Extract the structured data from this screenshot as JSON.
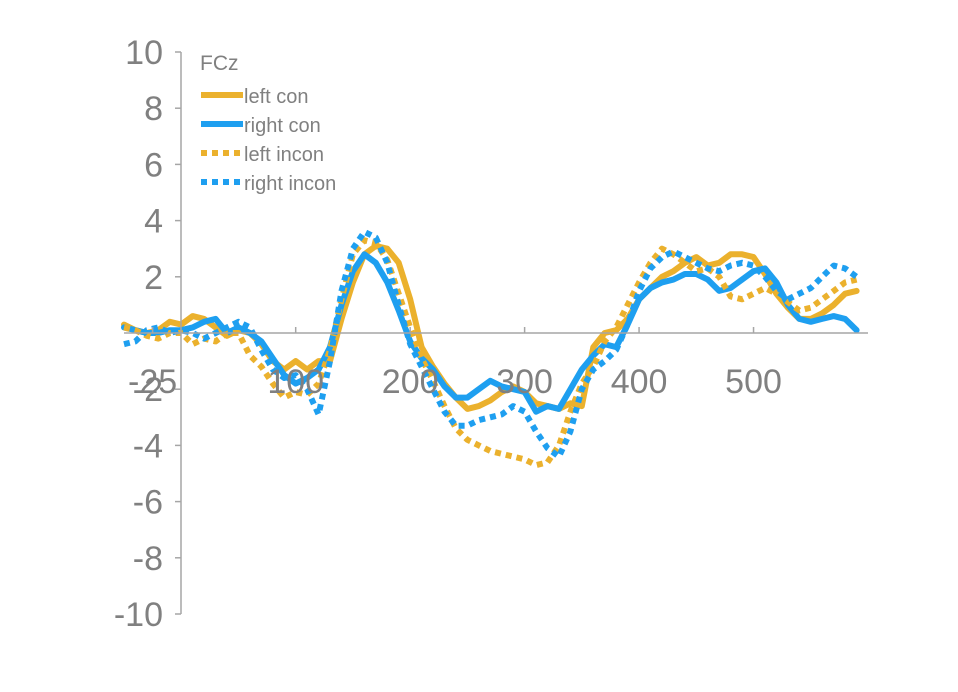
{
  "chart_data": {
    "type": "line",
    "title": "FCz",
    "xlabel": "",
    "ylabel": "",
    "xlim": [
      -50,
      600
    ],
    "ylim": [
      -10,
      10
    ],
    "x_ticks": [
      -25,
      100,
      200,
      300,
      400,
      500
    ],
    "y_ticks": [
      10,
      8,
      6,
      4,
      2,
      0,
      -2,
      -4,
      -6,
      -8,
      -10
    ],
    "y_tick_labels": [
      "10",
      "8",
      "6",
      "4",
      "2",
      "",
      "-2",
      "-4",
      "-6",
      "-8",
      "-10"
    ],
    "grid": false,
    "legend": "top-left",
    "series": [
      {
        "name": "left con",
        "color": "#ebb12d",
        "dash": "solid",
        "points": [
          [
            -50,
            0.3
          ],
          [
            -40,
            0.1
          ],
          [
            -30,
            0.0
          ],
          [
            -20,
            0.1
          ],
          [
            -10,
            0.4
          ],
          [
            0,
            0.3
          ],
          [
            10,
            0.6
          ],
          [
            20,
            0.5
          ],
          [
            30,
            0.2
          ],
          [
            40,
            -0.1
          ],
          [
            50,
            0.1
          ],
          [
            60,
            0.0
          ],
          [
            70,
            -0.4
          ],
          [
            80,
            -1.0
          ],
          [
            90,
            -1.3
          ],
          [
            100,
            -1.0
          ],
          [
            110,
            -1.3
          ],
          [
            120,
            -1.0
          ],
          [
            130,
            -1.0
          ],
          [
            140,
            0.5
          ],
          [
            150,
            1.8
          ],
          [
            160,
            2.8
          ],
          [
            170,
            3.1
          ],
          [
            180,
            3.0
          ],
          [
            190,
            2.5
          ],
          [
            200,
            1.2
          ],
          [
            210,
            -0.5
          ],
          [
            220,
            -1.2
          ],
          [
            230,
            -1.8
          ],
          [
            240,
            -2.3
          ],
          [
            250,
            -2.7
          ],
          [
            260,
            -2.6
          ],
          [
            270,
            -2.4
          ],
          [
            280,
            -2.1
          ],
          [
            290,
            -1.9
          ],
          [
            300,
            -2.1
          ],
          [
            310,
            -2.5
          ],
          [
            320,
            -2.6
          ],
          [
            330,
            -2.7
          ],
          [
            340,
            -2.5
          ],
          [
            350,
            -2.6
          ],
          [
            360,
            -0.5
          ],
          [
            370,
            0.0
          ],
          [
            380,
            0.1
          ],
          [
            390,
            0.5
          ],
          [
            400,
            1.2
          ],
          [
            410,
            1.6
          ],
          [
            420,
            2.0
          ],
          [
            430,
            2.2
          ],
          [
            440,
            2.5
          ],
          [
            450,
            2.7
          ],
          [
            460,
            2.4
          ],
          [
            470,
            2.5
          ],
          [
            480,
            2.8
          ],
          [
            490,
            2.8
          ],
          [
            500,
            2.7
          ],
          [
            510,
            2.1
          ],
          [
            520,
            1.4
          ],
          [
            530,
            0.9
          ],
          [
            540,
            0.5
          ],
          [
            550,
            0.5
          ],
          [
            560,
            0.7
          ],
          [
            570,
            1.0
          ],
          [
            580,
            1.4
          ],
          [
            590,
            1.5
          ]
        ]
      },
      {
        "name": "right con",
        "color": "#1e9ff0",
        "dash": "solid",
        "points": [
          [
            -50,
            0.2
          ],
          [
            -40,
            0.1
          ],
          [
            -30,
            0.0
          ],
          [
            -20,
            0.0
          ],
          [
            -10,
            0.1
          ],
          [
            0,
            0.1
          ],
          [
            10,
            0.2
          ],
          [
            20,
            0.4
          ],
          [
            30,
            0.5
          ],
          [
            40,
            0.0
          ],
          [
            50,
            0.2
          ],
          [
            60,
            0.0
          ],
          [
            70,
            -0.3
          ],
          [
            80,
            -0.9
          ],
          [
            90,
            -1.5
          ],
          [
            100,
            -1.8
          ],
          [
            110,
            -1.6
          ],
          [
            120,
            -1.3
          ],
          [
            130,
            -0.5
          ],
          [
            140,
            1.0
          ],
          [
            150,
            2.2
          ],
          [
            160,
            2.8
          ],
          [
            170,
            2.5
          ],
          [
            180,
            1.8
          ],
          [
            190,
            0.8
          ],
          [
            200,
            -0.3
          ],
          [
            210,
            -0.9
          ],
          [
            220,
            -1.3
          ],
          [
            230,
            -1.9
          ],
          [
            240,
            -2.3
          ],
          [
            250,
            -2.3
          ],
          [
            260,
            -2.0
          ],
          [
            270,
            -1.7
          ],
          [
            280,
            -1.9
          ],
          [
            290,
            -2.0
          ],
          [
            300,
            -2.1
          ],
          [
            310,
            -2.8
          ],
          [
            320,
            -2.6
          ],
          [
            330,
            -2.7
          ],
          [
            340,
            -2.0
          ],
          [
            350,
            -1.3
          ],
          [
            360,
            -0.8
          ],
          [
            370,
            -0.4
          ],
          [
            380,
            -0.5
          ],
          [
            390,
            0.3
          ],
          [
            400,
            1.2
          ],
          [
            410,
            1.6
          ],
          [
            420,
            1.8
          ],
          [
            430,
            1.9
          ],
          [
            440,
            2.1
          ],
          [
            450,
            2.1
          ],
          [
            460,
            1.9
          ],
          [
            470,
            1.5
          ],
          [
            480,
            1.6
          ],
          [
            490,
            1.9
          ],
          [
            500,
            2.2
          ],
          [
            510,
            2.3
          ],
          [
            520,
            1.8
          ],
          [
            530,
            1.0
          ],
          [
            540,
            0.5
          ],
          [
            550,
            0.4
          ],
          [
            560,
            0.5
          ],
          [
            570,
            0.6
          ],
          [
            580,
            0.5
          ],
          [
            590,
            0.1
          ]
        ]
      },
      {
        "name": "left incon",
        "color": "#ebb12d",
        "dash": "dotted",
        "points": [
          [
            -50,
            0.2
          ],
          [
            -40,
            0.1
          ],
          [
            -30,
            -0.1
          ],
          [
            -20,
            -0.2
          ],
          [
            -10,
            0.0
          ],
          [
            0,
            0.0
          ],
          [
            10,
            -0.4
          ],
          [
            20,
            -0.2
          ],
          [
            30,
            -0.3
          ],
          [
            40,
            0.0
          ],
          [
            50,
            0.0
          ],
          [
            60,
            -0.8
          ],
          [
            70,
            -1.2
          ],
          [
            80,
            -1.8
          ],
          [
            90,
            -2.3
          ],
          [
            100,
            -2.1
          ],
          [
            110,
            -2.2
          ],
          [
            120,
            -1.8
          ],
          [
            130,
            -0.6
          ],
          [
            140,
            1.2
          ],
          [
            150,
            2.8
          ],
          [
            160,
            3.3
          ],
          [
            170,
            3.2
          ],
          [
            180,
            2.6
          ],
          [
            190,
            1.4
          ],
          [
            200,
            0.2
          ],
          [
            210,
            -0.9
          ],
          [
            220,
            -1.7
          ],
          [
            230,
            -2.6
          ],
          [
            240,
            -3.4
          ],
          [
            250,
            -3.8
          ],
          [
            260,
            -4.0
          ],
          [
            270,
            -4.2
          ],
          [
            280,
            -4.3
          ],
          [
            290,
            -4.4
          ],
          [
            300,
            -4.5
          ],
          [
            310,
            -4.7
          ],
          [
            320,
            -4.6
          ],
          [
            330,
            -4.0
          ],
          [
            340,
            -2.8
          ],
          [
            350,
            -1.8
          ],
          [
            360,
            -1.2
          ],
          [
            370,
            -0.3
          ],
          [
            380,
            0.2
          ],
          [
            390,
            1.0
          ],
          [
            400,
            1.8
          ],
          [
            410,
            2.5
          ],
          [
            420,
            3.0
          ],
          [
            430,
            2.8
          ],
          [
            440,
            2.5
          ],
          [
            450,
            2.2
          ],
          [
            460,
            2.3
          ],
          [
            470,
            2.0
          ],
          [
            480,
            1.3
          ],
          [
            490,
            1.2
          ],
          [
            500,
            1.4
          ],
          [
            510,
            1.6
          ],
          [
            520,
            1.4
          ],
          [
            530,
            1.1
          ],
          [
            540,
            0.8
          ],
          [
            550,
            0.9
          ],
          [
            560,
            1.2
          ],
          [
            570,
            1.5
          ],
          [
            580,
            1.8
          ],
          [
            590,
            1.9
          ]
        ]
      },
      {
        "name": "right incon",
        "color": "#1e9ff0",
        "dash": "dotted",
        "points": [
          [
            -50,
            -0.4
          ],
          [
            -40,
            -0.3
          ],
          [
            -30,
            0.1
          ],
          [
            -20,
            0.2
          ],
          [
            -10,
            0.0
          ],
          [
            0,
            0.1
          ],
          [
            10,
            0.0
          ],
          [
            20,
            -0.2
          ],
          [
            30,
            0.0
          ],
          [
            40,
            0.2
          ],
          [
            50,
            0.4
          ],
          [
            60,
            0.2
          ],
          [
            70,
            -0.6
          ],
          [
            80,
            -1.3
          ],
          [
            90,
            -1.6
          ],
          [
            100,
            -1.5
          ],
          [
            110,
            -2.0
          ],
          [
            120,
            -2.9
          ],
          [
            130,
            -1.0
          ],
          [
            140,
            1.5
          ],
          [
            150,
            3.0
          ],
          [
            160,
            3.6
          ],
          [
            170,
            3.4
          ],
          [
            180,
            2.5
          ],
          [
            190,
            1.0
          ],
          [
            200,
            -0.4
          ],
          [
            210,
            -1.2
          ],
          [
            220,
            -2.0
          ],
          [
            230,
            -2.8
          ],
          [
            240,
            -3.3
          ],
          [
            250,
            -3.3
          ],
          [
            260,
            -3.1
          ],
          [
            270,
            -3.0
          ],
          [
            280,
            -2.9
          ],
          [
            290,
            -2.6
          ],
          [
            300,
            -2.8
          ],
          [
            310,
            -3.5
          ],
          [
            320,
            -4.1
          ],
          [
            330,
            -4.4
          ],
          [
            340,
            -3.5
          ],
          [
            350,
            -2.0
          ],
          [
            360,
            -1.3
          ],
          [
            370,
            -1.0
          ],
          [
            380,
            -0.6
          ],
          [
            390,
            0.3
          ],
          [
            400,
            1.5
          ],
          [
            410,
            2.3
          ],
          [
            420,
            2.7
          ],
          [
            430,
            2.9
          ],
          [
            440,
            2.7
          ],
          [
            450,
            2.5
          ],
          [
            460,
            2.3
          ],
          [
            470,
            2.2
          ],
          [
            480,
            2.4
          ],
          [
            490,
            2.5
          ],
          [
            500,
            2.4
          ],
          [
            510,
            2.0
          ],
          [
            520,
            1.5
          ],
          [
            530,
            1.2
          ],
          [
            540,
            1.4
          ],
          [
            550,
            1.6
          ],
          [
            560,
            2.0
          ],
          [
            570,
            2.4
          ],
          [
            580,
            2.3
          ],
          [
            590,
            2.0
          ]
        ]
      }
    ]
  }
}
